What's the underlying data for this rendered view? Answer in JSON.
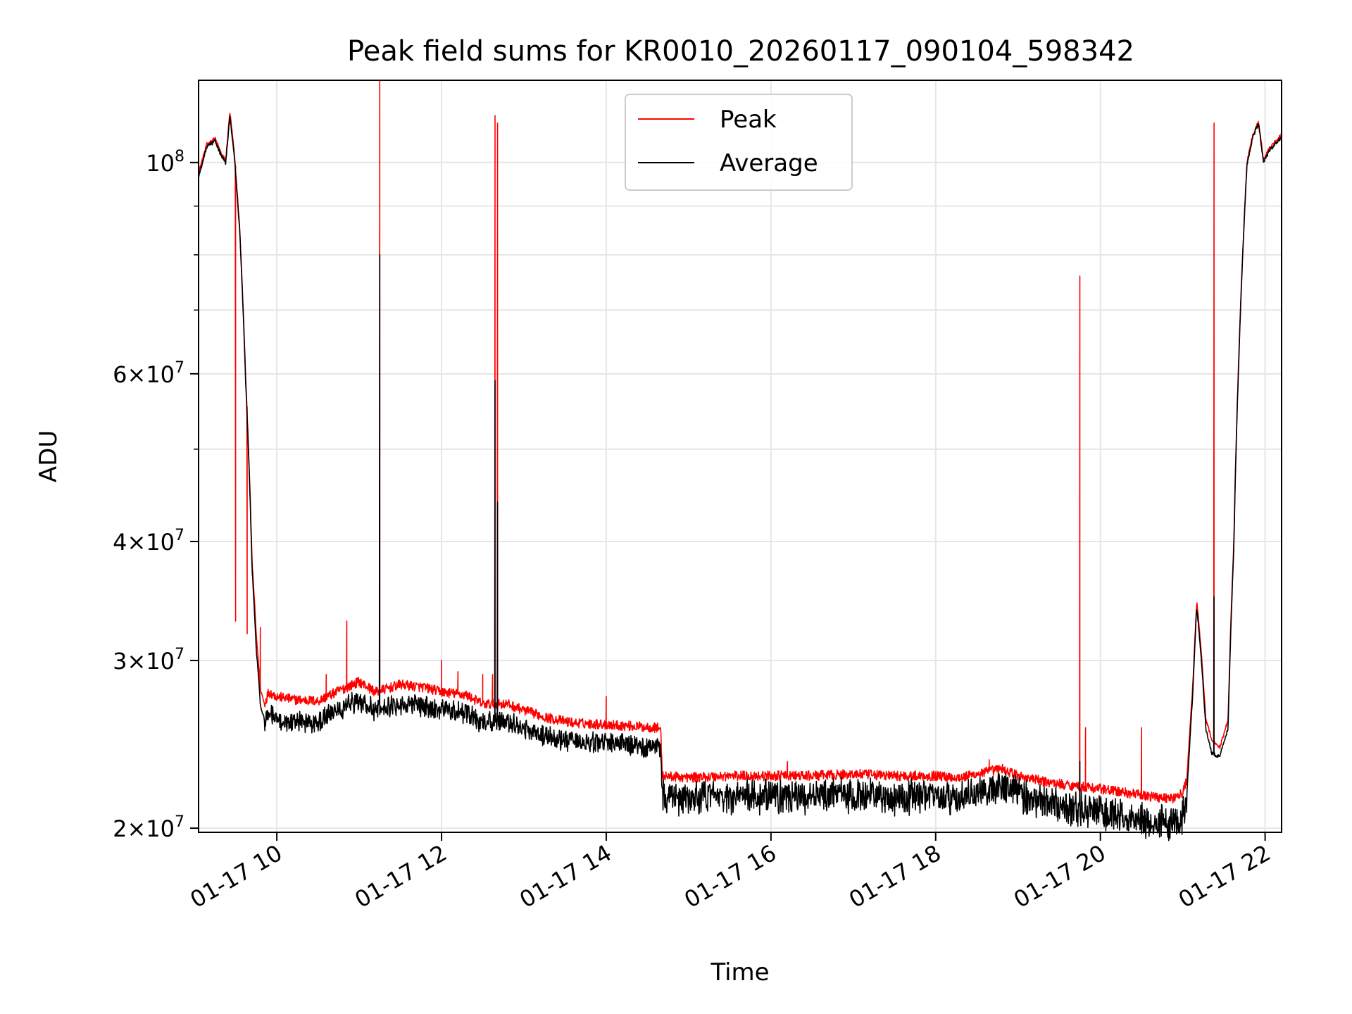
{
  "chart_data": {
    "type": "line",
    "title": "Peak field sums for KR0010_20260117_090104_598342",
    "xlabel": "Time",
    "ylabel": "ADU",
    "yscale": "log",
    "xlim_hours": [
      9.05,
      22.2
    ],
    "ylim": [
      19800000,
      122000000
    ],
    "grid": true,
    "legend_position": "upper center",
    "colors": {
      "peak": "#ff0000",
      "average": "#000000",
      "grid": "#e6e6e6"
    },
    "x_ticks": [
      {
        "value": 10,
        "label": "01-17 10"
      },
      {
        "value": 12,
        "label": "01-17 12"
      },
      {
        "value": 14,
        "label": "01-17 14"
      },
      {
        "value": 16,
        "label": "01-17 16"
      },
      {
        "value": 18,
        "label": "01-17 18"
      },
      {
        "value": 20,
        "label": "01-17 20"
      },
      {
        "value": 22,
        "label": "01-17 22"
      }
    ],
    "y_ticks": [
      {
        "value": 20000000,
        "base": "2",
        "exp": "7"
      },
      {
        "value": 30000000,
        "base": "3",
        "exp": "7"
      },
      {
        "value": 40000000,
        "base": "4",
        "exp": "7"
      },
      {
        "value": 60000000,
        "base": "6",
        "exp": "7"
      },
      {
        "value": 100000000,
        "base": "",
        "exp": "8"
      }
    ],
    "y_tick_times": "×",
    "y_tick_ten": "10",
    "y_minor_ticks": [
      50000000,
      70000000,
      80000000,
      90000000
    ],
    "series": [
      {
        "name": "Peak",
        "points": [
          [
            9.05,
            97500000
          ],
          [
            9.15,
            104500000
          ],
          [
            9.25,
            106000000
          ],
          [
            9.33,
            102000000
          ],
          [
            9.38,
            100500000
          ],
          [
            9.43,
            113000000
          ],
          [
            9.48,
            103000000
          ],
          [
            9.55,
            85000000
          ],
          [
            9.62,
            60000000
          ],
          [
            9.7,
            38000000
          ],
          [
            9.75,
            32000000
          ],
          [
            9.8,
            28000000
          ],
          [
            9.85,
            27000000
          ],
          [
            9.9,
            27800000
          ],
          [
            10.0,
            27500000
          ],
          [
            10.2,
            27300000
          ],
          [
            10.5,
            27200000
          ],
          [
            10.8,
            28000000
          ],
          [
            11.0,
            28500000
          ],
          [
            11.2,
            27800000
          ],
          [
            11.5,
            28300000
          ],
          [
            11.8,
            28100000
          ],
          [
            12.0,
            27800000
          ],
          [
            12.3,
            27600000
          ],
          [
            12.5,
            27000000
          ],
          [
            12.8,
            27000000
          ],
          [
            13.0,
            26600000
          ],
          [
            13.3,
            26100000
          ],
          [
            13.6,
            25800000
          ],
          [
            14.0,
            25700000
          ],
          [
            14.3,
            25600000
          ],
          [
            14.6,
            25500000
          ],
          [
            14.66,
            25500000
          ],
          [
            14.68,
            22700000
          ],
          [
            15.0,
            22600000
          ],
          [
            15.5,
            22700000
          ],
          [
            16.0,
            22700000
          ],
          [
            16.5,
            22700000
          ],
          [
            17.0,
            22800000
          ],
          [
            17.5,
            22700000
          ],
          [
            18.0,
            22700000
          ],
          [
            18.3,
            22600000
          ],
          [
            18.6,
            22900000
          ],
          [
            18.8,
            23100000
          ],
          [
            19.0,
            22700000
          ],
          [
            19.3,
            22400000
          ],
          [
            19.6,
            22200000
          ],
          [
            20.0,
            22000000
          ],
          [
            20.3,
            21800000
          ],
          [
            20.6,
            21600000
          ],
          [
            20.9,
            21500000
          ],
          [
            21.0,
            21800000
          ],
          [
            21.05,
            22500000
          ],
          [
            21.12,
            28000000
          ],
          [
            21.17,
            34600000
          ],
          [
            21.22,
            31000000
          ],
          [
            21.28,
            26000000
          ],
          [
            21.35,
            24800000
          ],
          [
            21.45,
            24300000
          ],
          [
            21.55,
            26000000
          ],
          [
            21.62,
            40000000
          ],
          [
            21.7,
            70000000
          ],
          [
            21.78,
            100000000
          ],
          [
            21.85,
            107000000
          ],
          [
            21.92,
            110500000
          ],
          [
            21.98,
            100500000
          ],
          [
            22.05,
            103500000
          ],
          [
            22.2,
            107000000
          ]
        ],
        "spikes": [
          [
            9.5,
            33000000
          ],
          [
            9.64,
            32000000
          ],
          [
            9.8,
            32500000
          ],
          [
            10.6,
            29000000
          ],
          [
            10.85,
            33000000
          ],
          [
            11.25,
            122000000
          ],
          [
            12.0,
            30000000
          ],
          [
            12.2,
            29200000
          ],
          [
            12.5,
            29000000
          ],
          [
            12.62,
            29000000
          ],
          [
            12.65,
            112000000
          ],
          [
            12.68,
            110000000
          ],
          [
            14.0,
            27500000
          ],
          [
            16.2,
            23500000
          ],
          [
            18.65,
            23600000
          ],
          [
            19.75,
            76000000
          ],
          [
            19.82,
            25500000
          ],
          [
            20.5,
            25500000
          ],
          [
            21.38,
            110000000
          ]
        ]
      },
      {
        "name": "Average",
        "points": [
          [
            9.05,
            96500000
          ],
          [
            9.15,
            104000000
          ],
          [
            9.25,
            105500000
          ],
          [
            9.33,
            101500000
          ],
          [
            9.38,
            100000000
          ],
          [
            9.43,
            112000000
          ],
          [
            9.48,
            102500000
          ],
          [
            9.55,
            84500000
          ],
          [
            9.62,
            59500000
          ],
          [
            9.7,
            37500000
          ],
          [
            9.75,
            31000000
          ],
          [
            9.8,
            27000000
          ],
          [
            9.85,
            26000000
          ],
          [
            9.9,
            26700000
          ],
          [
            10.0,
            26200000
          ],
          [
            10.2,
            26100000
          ],
          [
            10.5,
            26000000
          ],
          [
            10.8,
            27000000
          ],
          [
            11.0,
            27400000
          ],
          [
            11.2,
            26800000
          ],
          [
            11.5,
            27200000
          ],
          [
            11.8,
            27000000
          ],
          [
            12.0,
            26800000
          ],
          [
            12.3,
            26600000
          ],
          [
            12.5,
            26000000
          ],
          [
            12.8,
            26100000
          ],
          [
            13.0,
            25600000
          ],
          [
            13.3,
            25100000
          ],
          [
            13.6,
            24800000
          ],
          [
            14.0,
            24700000
          ],
          [
            14.3,
            24600000
          ],
          [
            14.6,
            24500000
          ],
          [
            14.66,
            24500000
          ],
          [
            14.68,
            21800000
          ],
          [
            15.0,
            21700000
          ],
          [
            15.5,
            21800000
          ],
          [
            16.0,
            21800000
          ],
          [
            16.5,
            21800000
          ],
          [
            17.0,
            21900000
          ],
          [
            17.5,
            21800000
          ],
          [
            18.0,
            21800000
          ],
          [
            18.3,
            21700000
          ],
          [
            18.6,
            22200000
          ],
          [
            18.8,
            22400000
          ],
          [
            19.0,
            21900000
          ],
          [
            19.3,
            21500000
          ],
          [
            19.6,
            21300000
          ],
          [
            20.0,
            21000000
          ],
          [
            20.3,
            20800000
          ],
          [
            20.6,
            20600000
          ],
          [
            20.9,
            20500000
          ],
          [
            21.0,
            20800000
          ],
          [
            21.05,
            21700000
          ],
          [
            21.12,
            27500000
          ],
          [
            21.17,
            34200000
          ],
          [
            21.22,
            30500000
          ],
          [
            21.28,
            25500000
          ],
          [
            21.35,
            24000000
          ],
          [
            21.45,
            23800000
          ],
          [
            21.55,
            25500000
          ],
          [
            21.62,
            39500000
          ],
          [
            21.7,
            69500000
          ],
          [
            21.78,
            99500000
          ],
          [
            21.85,
            106500000
          ],
          [
            21.92,
            110000000
          ],
          [
            21.98,
            100000000
          ],
          [
            22.05,
            103000000
          ],
          [
            22.2,
            106500000
          ]
        ],
        "spikes": [
          [
            11.25,
            80000000
          ],
          [
            12.65,
            59000000
          ],
          [
            12.68,
            44000000
          ],
          [
            19.75,
            23500000
          ],
          [
            21.38,
            35000000
          ]
        ]
      }
    ]
  }
}
